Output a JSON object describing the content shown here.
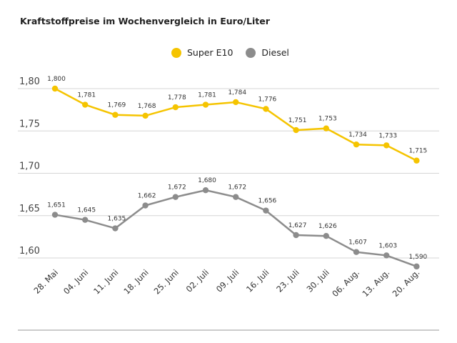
{
  "chart_data": {
    "type": "line",
    "title": "Kraftstoffpreise im Wochenvergleich in Euro/Liter",
    "categories": [
      "28. Mai",
      "04. Juni",
      "11. Juni",
      "18. Juni",
      "25. Juni",
      "02. Juli",
      "09. Juli",
      "16. Juli",
      "23. Juli",
      "30. Juli",
      "06. Aug.",
      "13. Aug.",
      "20. Aug."
    ],
    "series": [
      {
        "name": "Super E10",
        "color": "#f5c400",
        "values": [
          1.8,
          1.781,
          1.769,
          1.768,
          1.778,
          1.781,
          1.784,
          1.776,
          1.751,
          1.753,
          1.734,
          1.733,
          1.715
        ],
        "labels": [
          "1,800",
          "1,781",
          "1,769",
          "1,768",
          "1,778",
          "1,781",
          "1,784",
          "1,776",
          "1,751",
          "1,753",
          "1,734",
          "1,733",
          "1,715"
        ]
      },
      {
        "name": "Diesel",
        "color": "#8c8c8c",
        "values": [
          1.651,
          1.645,
          1.635,
          1.662,
          1.672,
          1.68,
          1.672,
          1.656,
          1.627,
          1.626,
          1.607,
          1.603,
          1.59
        ],
        "labels": [
          "1,651",
          "1,645",
          "1,635",
          "1,662",
          "1,672",
          "1,680",
          "1,672",
          "1,656",
          "1,627",
          "1,626",
          "1,607",
          "1,603",
          "1,590"
        ]
      }
    ],
    "yticks": [
      1.8,
      1.75,
      1.7,
      1.65,
      1.6
    ],
    "ytick_labels": [
      "1,80",
      "1,75",
      "1,70",
      "1,65",
      "1,60"
    ],
    "ylim": [
      1.58,
      1.81
    ],
    "grid": true,
    "legend": "top-right"
  }
}
